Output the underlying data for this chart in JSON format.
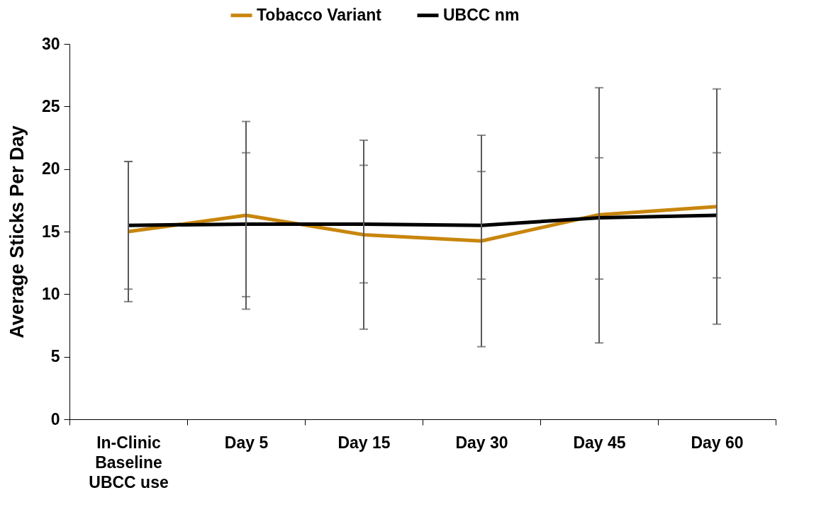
{
  "chart_data": {
    "type": "line",
    "ylabel": "Average Sticks Per Day",
    "categories": [
      "In-Clinic Baseline UBCC use",
      "Day 5",
      "Day 15",
      "Day 30",
      "Day 45",
      "Day 60"
    ],
    "series": [
      {
        "name": "Tobacco Variant",
        "color": "#c8860d",
        "values": [
          15.0,
          16.3,
          14.75,
          14.25,
          16.35,
          17.0
        ],
        "errors": [
          [
            9.4,
            20.6
          ],
          [
            8.8,
            23.8
          ],
          [
            7.2,
            22.3
          ],
          [
            5.8,
            22.7
          ],
          [
            6.1,
            26.5
          ],
          [
            7.6,
            26.4
          ]
        ]
      },
      {
        "name": "UBCC nm",
        "color": "#000000",
        "values": [
          15.5,
          15.6,
          15.6,
          15.5,
          16.1,
          16.3
        ],
        "errors": [
          [
            10.4,
            20.6
          ],
          [
            9.8,
            21.3
          ],
          [
            10.9,
            20.3
          ],
          [
            11.2,
            19.8
          ],
          [
            11.2,
            20.9
          ],
          [
            11.3,
            21.3
          ]
        ]
      }
    ],
    "ylim": [
      0,
      30
    ],
    "yticks": [
      0,
      5,
      10,
      15,
      20,
      25,
      30
    ],
    "grid": false,
    "legend": "top",
    "marker": "none",
    "line_style": "solid"
  }
}
